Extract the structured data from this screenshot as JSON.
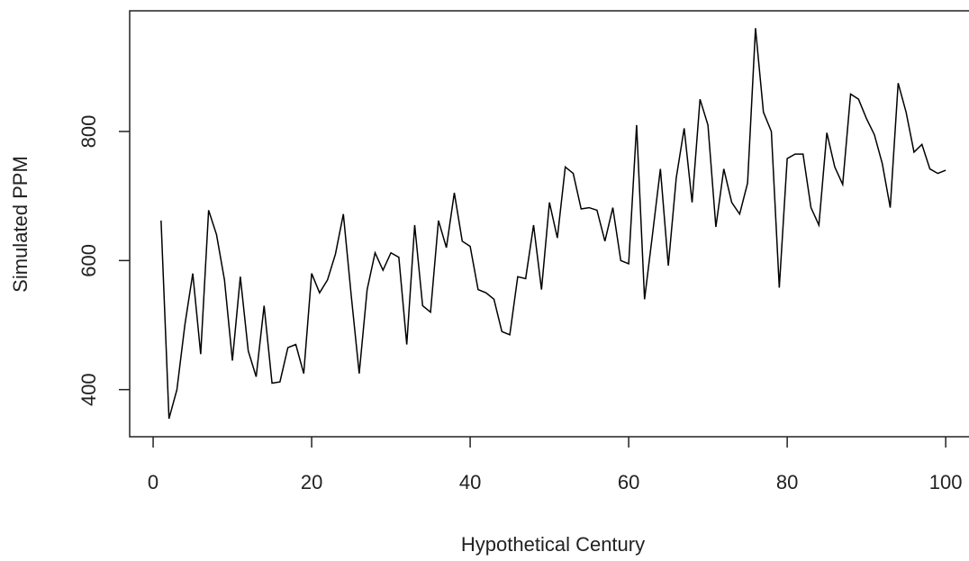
{
  "chart_data": {
    "type": "line",
    "x_label": "Hypothetical Century",
    "y_label": "Simulated PPM",
    "x": [
      1,
      2,
      3,
      4,
      5,
      6,
      7,
      8,
      9,
      10,
      11,
      12,
      13,
      14,
      15,
      16,
      17,
      18,
      19,
      20,
      21,
      22,
      23,
      24,
      25,
      26,
      27,
      28,
      29,
      30,
      31,
      32,
      33,
      34,
      35,
      36,
      37,
      38,
      39,
      40,
      41,
      42,
      43,
      44,
      45,
      46,
      47,
      48,
      49,
      50,
      51,
      52,
      53,
      54,
      55,
      56,
      57,
      58,
      59,
      60,
      61,
      62,
      63,
      64,
      65,
      66,
      67,
      68,
      69,
      70,
      71,
      72,
      73,
      74,
      75,
      76,
      77,
      78,
      79,
      80,
      81,
      82,
      83,
      84,
      85,
      86,
      87,
      88,
      89,
      90,
      91,
      92,
      93,
      94,
      95,
      96,
      97,
      98,
      99,
      100
    ],
    "series": [
      {
        "name": "Simulated PPM",
        "color": "#000000",
        "values": [
          662,
          355,
          400,
          500,
          580,
          455,
          678,
          640,
          570,
          445,
          575,
          460,
          420,
          530,
          410,
          412,
          465,
          470,
          425,
          580,
          550,
          570,
          610,
          672,
          545,
          425,
          555,
          612,
          585,
          612,
          605,
          470,
          655,
          530,
          520,
          662,
          620,
          705,
          630,
          622,
          555,
          550,
          540,
          490,
          485,
          575,
          572,
          655,
          555,
          690,
          635,
          745,
          735,
          680,
          682,
          678,
          630,
          682,
          600,
          595,
          810,
          540,
          640,
          742,
          592,
          728,
          805,
          690,
          850,
          810,
          652,
          742,
          690,
          672,
          720,
          960,
          830,
          800,
          558,
          758,
          765,
          765,
          682,
          655,
          798,
          745,
          718,
          858,
          850,
          820,
          795,
          750,
          682,
          875,
          830,
          768,
          780,
          742,
          735,
          740
        ]
      }
    ],
    "xlim": [
      -2.96,
      103.96
    ],
    "ylim": [
      327,
      987
    ],
    "xticks": [
      0,
      20,
      40,
      60,
      80,
      100
    ],
    "yticks": [
      400,
      600,
      800
    ]
  }
}
